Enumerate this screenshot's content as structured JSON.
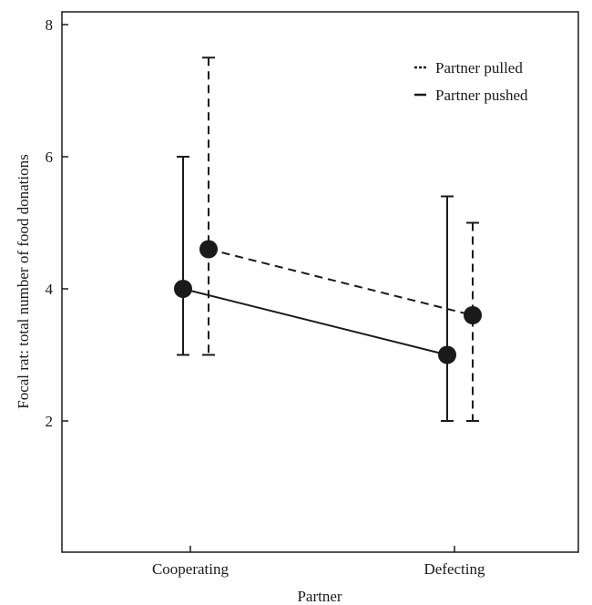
{
  "chart_data": {
    "type": "line",
    "xlabel": "Partner",
    "ylabel": "Focal rat: total number of food donations",
    "categories": [
      "Cooperating",
      "Defecting"
    ],
    "ylim": [
      0,
      8
    ],
    "yticks": [
      2,
      4,
      6,
      8
    ],
    "grid": false,
    "legend_position": "top-right",
    "series": [
      {
        "name": "Partner pulled",
        "line_style": "dashed",
        "values": [
          4.6,
          3.6
        ],
        "error_low": [
          3.0,
          2.0
        ],
        "error_high": [
          7.5,
          5.0
        ]
      },
      {
        "name": "Partner pushed",
        "line_style": "solid",
        "values": [
          4.0,
          3.0
        ],
        "error_low": [
          3.0,
          2.0
        ],
        "error_high": [
          6.0,
          5.4
        ]
      }
    ]
  }
}
